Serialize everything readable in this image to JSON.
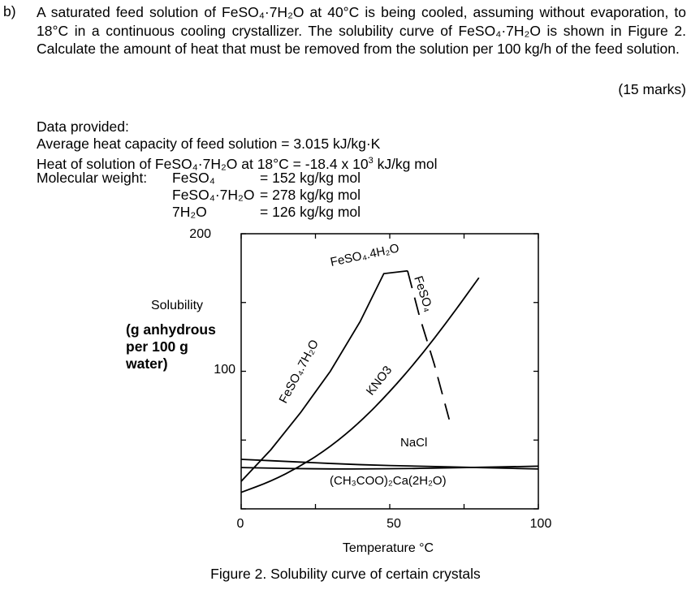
{
  "question": {
    "label": "b)",
    "text": "A saturated feed solution of FeSO₄·7H₂O at 40°C is being cooled, assuming without evaporation, to 18°C in a continuous cooling crystallizer. The solubility curve of FeSO₄·7H₂O is shown in Figure 2. Calculate the amount of heat that must be removed from the solution per 100 kg/h of the feed solution.",
    "marks": "(15 marks)"
  },
  "data_provided": {
    "heading": "Data provided:",
    "heat_capacity": "Average heat capacity of feed solution = 3.015 kJ/kg·K",
    "heat_of_solution_pre": "Heat of solution of FeSO₄·7H₂O at 18°C = -18.4 x 10",
    "heat_of_solution_exp": "3",
    "heat_of_solution_post": " kJ/kg mol",
    "mw_label": "Molecular weight:",
    "mw_rows": [
      {
        "species": "FeSO₄",
        "value": "= 152 kg/kg mol"
      },
      {
        "species": "FeSO₄·7H₂O",
        "value": "= 278 kg/kg mol"
      },
      {
        "species": "7H₂O",
        "value": "= 126 kg/kg mol"
      }
    ]
  },
  "chart_data": {
    "type": "line",
    "xlabel": "Temperature °C",
    "ylabel": "Solubility",
    "ylabel_note": [
      "(g anhydrous",
      "per 100 g",
      "water)"
    ],
    "xlim": [
      0,
      100
    ],
    "ylim": [
      0,
      200
    ],
    "x_ticks": [
      "0",
      "50",
      "100"
    ],
    "y_ticks": [
      "200",
      "100"
    ],
    "series": [
      {
        "name": "FeSO₄.4H₂O",
        "style": "solid",
        "x": [
          0,
          10,
          20,
          30,
          40,
          48,
          56
        ],
        "y": [
          20,
          43,
          70,
          100,
          136,
          171,
          173
        ]
      },
      {
        "name": "FeSO₄",
        "style": "dashed",
        "x": [
          56,
          60,
          65,
          70
        ],
        "y": [
          173,
          140,
          105,
          65
        ]
      },
      {
        "name": "KNO3",
        "style": "solid",
        "x": [
          0,
          10,
          20,
          30,
          40,
          50,
          60,
          70,
          80
        ],
        "y": [
          12,
          20,
          31,
          45,
          63,
          85,
          110,
          138,
          168
        ]
      },
      {
        "name": "NaCl",
        "style": "solid",
        "x": [
          0,
          25,
          50,
          75,
          100
        ],
        "y": [
          30,
          29,
          29,
          30,
          31
        ]
      },
      {
        "name": "(CH₃COO)₂Ca(2H₂O)",
        "style": "solid",
        "x": [
          0,
          20,
          40,
          60,
          80,
          100
        ],
        "y": [
          36,
          34,
          32,
          31,
          30,
          29
        ]
      }
    ],
    "curve_labels": {
      "fe4": "FeSO₄.4H₂O",
      "fe7": "FeSO₄.7H₂O",
      "feso4": "FeSO₄",
      "kno3": "KNO3",
      "nacl": "NaCl",
      "caac": "(CH₃COO)₂Ca(2H₂O)"
    }
  },
  "caption": "Figure 2. Solubility curve of certain crystals"
}
